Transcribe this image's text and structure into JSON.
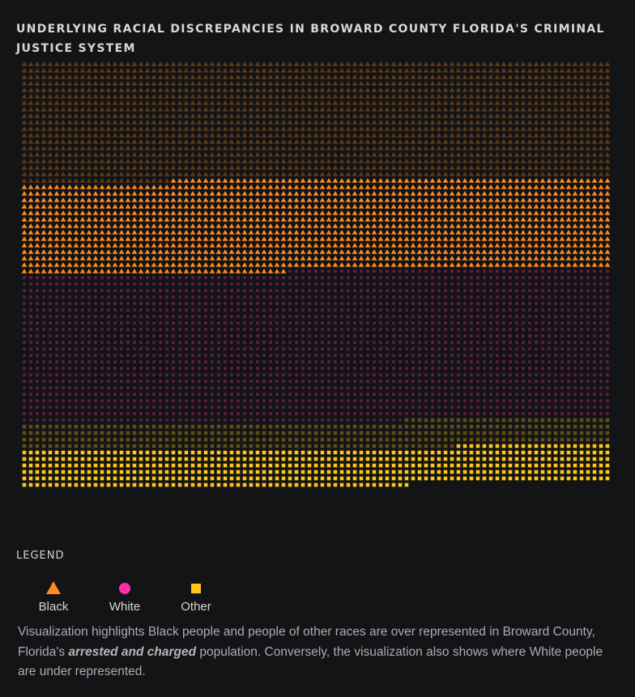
{
  "title": "UNDERLYING RACIAL DISCREPANCIES IN BROWARD COUNTY FLORIDA'S CRIMINAL JUSTICE SYSTEM",
  "legend_title": "LEGEND",
  "legend": [
    {
      "label": "Black",
      "shape": "triangle",
      "color": "#ff8a1f"
    },
    {
      "label": "White",
      "shape": "circle",
      "color": "#ff2fa8"
    },
    {
      "label": "Other",
      "shape": "square",
      "color": "#ffc61a"
    }
  ],
  "caption": {
    "before": "Visualization highlights Black people and people of other races are over represented in Broward County, Florida's ",
    "emphasis": "arrested and charged",
    "after": " population. Conversely, the visualization also shows where White people are under represented."
  },
  "chart_data": {
    "type": "unit-grid",
    "columns": 91,
    "groups": [
      {
        "name": "Black",
        "shape": "triangle",
        "color": "#ff8a1f",
        "bright_units": 1292,
        "dim_units": 1661
      },
      {
        "name": "White",
        "shape": "circle",
        "color": "#ff2fa8",
        "bright_units": 0,
        "dim_units": 2111
      },
      {
        "name": "Other",
        "shape": "square",
        "color": "#ffc61a",
        "bright_units": 539,
        "dim_units": 372
      }
    ]
  }
}
